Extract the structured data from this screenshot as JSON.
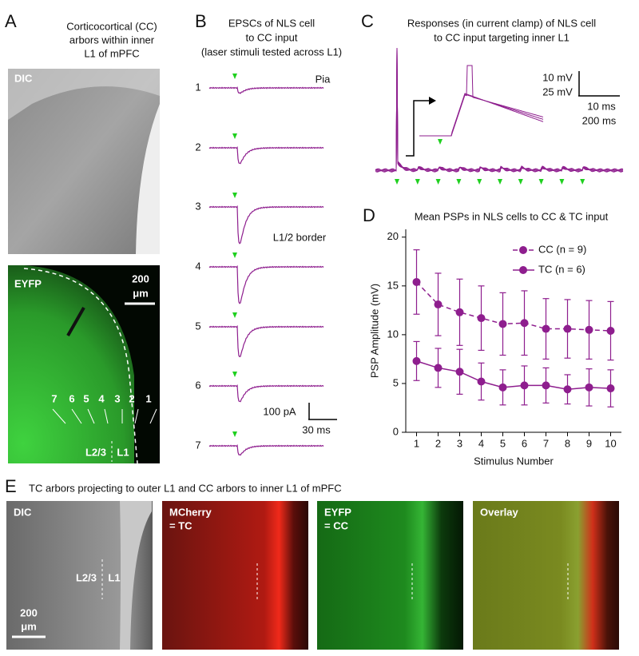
{
  "panels": {
    "a": {
      "letter": "A",
      "title": [
        "Corticocortical (CC)",
        "arbors within inner",
        "L1 of mPFC"
      ],
      "dic_label": "DIC",
      "eyfp_label": "EYFP",
      "scale": [
        "200",
        "μm"
      ],
      "sites": [
        "7",
        "6",
        "5",
        "4",
        "3",
        "2",
        "1"
      ],
      "layers": [
        "L2/3",
        "L1"
      ]
    },
    "b": {
      "letter": "B",
      "title": [
        "EPSCs of NLS cell",
        "to CC input",
        "(laser stimuli tested across L1)"
      ],
      "traces": [
        "1",
        "2",
        "3",
        "4",
        "5",
        "6",
        "7"
      ],
      "pia": "Pia",
      "border": "L1/2 border",
      "scale": [
        "100 pA",
        "30 ms"
      ]
    },
    "c": {
      "letter": "C",
      "title": [
        "Responses (in current clamp) of NLS cell",
        "to CC input targeting inner L1"
      ],
      "scale": [
        "10 mV",
        "25 mV",
        "10 ms",
        "200 ms"
      ]
    },
    "d": {
      "letter": "D"
    },
    "e": {
      "letter": "E",
      "title": "TC arbors projecting to outer L1 and CC arbors to inner L1 of mPFC",
      "images": [
        [
          "DIC"
        ],
        [
          "MCherry",
          "= TC"
        ],
        [
          "EYFP",
          "= CC"
        ],
        [
          "Overlay"
        ]
      ],
      "layers": [
        "L2/3",
        "L1"
      ],
      "scale": [
        "200",
        "μm"
      ]
    }
  },
  "chart_data": {
    "type": "line",
    "title": "Mean PSPs in NLS cells to CC & TC input",
    "x_label": "Stimulus Number",
    "y_label": "PSP Amplitude (mV)",
    "x": [
      1,
      2,
      3,
      4,
      5,
      6,
      7,
      8,
      9,
      10
    ],
    "xlim": [
      0.5,
      10.5
    ],
    "xticks": [
      1,
      2,
      3,
      4,
      5,
      6,
      7,
      8,
      9,
      10
    ],
    "ylim": [
      0,
      20.8
    ],
    "yticks": [
      0,
      5,
      10,
      15,
      20
    ],
    "legend": "upper right",
    "series": [
      {
        "name": "CC (n = 9)",
        "color": "#8e1e8e",
        "dashed": true,
        "values": [
          15.4,
          13.1,
          12.3,
          11.7,
          11.1,
          11.2,
          10.6,
          10.6,
          10.5,
          10.4
        ],
        "errors": [
          3.3,
          3.2,
          3.4,
          3.3,
          3.2,
          3.3,
          3.1,
          3.0,
          3.0,
          3.0
        ]
      },
      {
        "name": "TC (n = 6)",
        "color": "#8e1e8e",
        "dashed": false,
        "values": [
          7.3,
          6.6,
          6.2,
          5.2,
          4.6,
          4.8,
          4.8,
          4.4,
          4.6,
          4.5
        ],
        "errors": [
          2.0,
          2.0,
          2.3,
          1.9,
          1.8,
          2.0,
          1.8,
          1.5,
          1.9,
          1.9
        ]
      }
    ]
  }
}
